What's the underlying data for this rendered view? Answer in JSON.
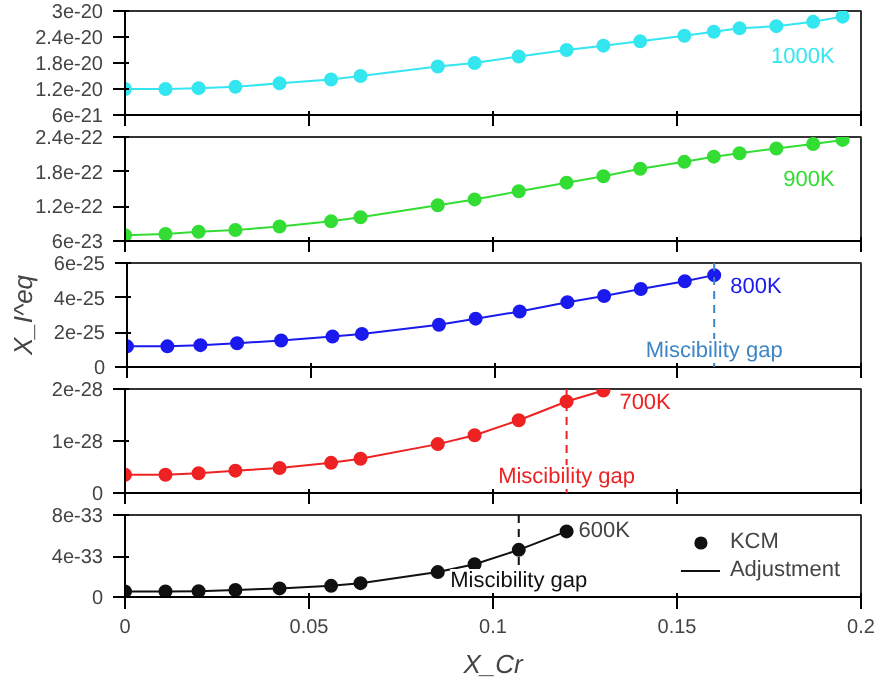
{
  "chart_data": [
    {
      "type": "line",
      "ylim": [
        6e-21,
        3e-20
      ],
      "yticks": [
        {
          "value": 6e-21,
          "label": "6e-21"
        },
        {
          "value": 1.2e-20,
          "label": "1.2e-20"
        },
        {
          "value": 1.8e-20,
          "label": "1.8e-20"
        },
        {
          "value": 2.4e-20,
          "label": "2.4e-20"
        },
        {
          "value": 3e-20,
          "label": "3e-20"
        }
      ],
      "xlim": [
        0,
        0.2
      ],
      "xticks": [
        0,
        0.05,
        0.1,
        0.15,
        0.2
      ],
      "tick_labels": "y",
      "marker": "circle",
      "grid": false,
      "x": [
        0,
        0.011,
        0.02,
        0.03,
        0.042,
        0.056,
        0.064,
        0.085,
        0.095,
        0.107,
        0.12,
        0.13,
        0.14,
        0.152,
        0.16,
        0.167,
        0.177,
        0.187,
        0.195
      ],
      "series": [
        {
          "name": "1000K",
          "color": "#33e6f0",
          "values": [
            1.2e-20,
            1.2e-20,
            1.22e-20,
            1.25e-20,
            1.33e-20,
            1.42e-20,
            1.5e-20,
            1.72e-20,
            1.8e-20,
            1.95e-20,
            2.1e-20,
            2.2e-20,
            2.3e-20,
            2.43e-20,
            2.52e-20,
            2.6e-20,
            2.65e-20,
            2.75e-20,
            2.87e-20
          ]
        }
      ]
    },
    {
      "type": "line",
      "ylim": [
        6e-23,
        2.4e-22
      ],
      "yticks": [
        {
          "value": 6e-23,
          "label": "6e-23"
        },
        {
          "value": 1.2e-22,
          "label": "1.2e-22"
        },
        {
          "value": 1.8e-22,
          "label": "1.8e-22"
        },
        {
          "value": 2.4e-22,
          "label": "2.4e-22"
        }
      ],
      "xlim": [
        0,
        0.2
      ],
      "xticks": [
        0,
        0.05,
        0.1,
        0.15,
        0.2
      ],
      "tick_labels": "y",
      "marker": "circle",
      "grid": false,
      "x": [
        0,
        0.011,
        0.02,
        0.03,
        0.042,
        0.056,
        0.064,
        0.085,
        0.095,
        0.107,
        0.12,
        0.13,
        0.14,
        0.152,
        0.16,
        0.167,
        0.177,
        0.187,
        0.195
      ],
      "series": [
        {
          "name": "900K",
          "color": "#33dd33",
          "values": [
            7e-23,
            7.2e-23,
            7.6e-23,
            7.9e-23,
            8.5e-23,
            9.4e-23,
            1.01e-22,
            1.22e-22,
            1.32e-22,
            1.46e-22,
            1.61e-22,
            1.72e-22,
            1.85e-22,
            1.97e-22,
            2.06e-22,
            2.12e-22,
            2.2e-22,
            2.28e-22,
            2.35e-22
          ]
        }
      ]
    },
    {
      "type": "line",
      "ylabel": "X_I^eq",
      "ylim": [
        0,
        6e-25
      ],
      "yticks": [
        0,
        2e-25,
        4e-25,
        6e-25
      ],
      "xlim": [
        0,
        0.2
      ],
      "xticks": [
        0,
        0.05,
        0.1,
        0.15,
        0.2
      ],
      "tick_labels": "y",
      "marker": "circle",
      "grid": false,
      "x": [
        0,
        0.011,
        0.02,
        0.03,
        0.042,
        0.056,
        0.064,
        0.085,
        0.095,
        0.107,
        0.12,
        0.13,
        0.14,
        0.152,
        0.16
      ],
      "series": [
        {
          "name": "800K",
          "color": "#1a1aee",
          "values": [
            1.19e-25,
            1.19e-25,
            1.26e-25,
            1.37e-25,
            1.53e-25,
            1.76e-25,
            1.91e-25,
            2.44e-25,
            2.79e-25,
            3.2e-25,
            3.74e-25,
            4.1e-25,
            4.5e-25,
            4.95e-25,
            5.3e-25
          ]
        }
      ],
      "ref_lines": [
        {
          "axis": "x",
          "value": 0.16,
          "label": "Miscibility gap",
          "color": "#3d85c6",
          "line_style": "dashed"
        }
      ]
    },
    {
      "type": "line",
      "ylim": [
        0,
        2e-28
      ],
      "yticks": [
        0,
        1e-28,
        2e-28
      ],
      "xlim": [
        0,
        0.2
      ],
      "xticks": [
        0,
        0.05,
        0.1,
        0.15,
        0.2
      ],
      "tick_labels": "y",
      "marker": "circle",
      "grid": false,
      "x": [
        0,
        0.011,
        0.02,
        0.03,
        0.042,
        0.056,
        0.064,
        0.085,
        0.095,
        0.107,
        0.12,
        0.13
      ],
      "series": [
        {
          "name": "700K",
          "color": "#ee2222",
          "values": [
            3.5e-29,
            3.5e-29,
            3.8e-29,
            4.3e-29,
            4.8e-29,
            5.8e-29,
            6.6e-29,
            9.4e-29,
            1.11e-28,
            1.4e-28,
            1.76e-28,
            1.97e-28
          ]
        }
      ],
      "ref_lines": [
        {
          "axis": "x",
          "value": 0.12,
          "label": "Miscibility gap",
          "color": "#ee2222",
          "line_style": "dashed"
        }
      ]
    },
    {
      "type": "line",
      "xlabel": "X_Cr",
      "ylim": [
        0,
        8e-33
      ],
      "yticks": [
        0,
        4e-33,
        8e-33
      ],
      "xlim": [
        0,
        0.2
      ],
      "xticks": [
        0,
        0.05,
        0.1,
        0.15,
        0.2
      ],
      "grid": false,
      "legend": "right",
      "x": [
        0,
        0.011,
        0.02,
        0.03,
        0.042,
        0.056,
        0.064,
        0.085,
        0.095,
        0.107,
        0.12
      ],
      "series": [
        {
          "name": "KCM",
          "type": "scatter",
          "marker": "circle",
          "color": "#111111",
          "values": [
            5.3e-34,
            5.3e-34,
            5.7e-34,
            6.8e-34,
            8.4e-34,
            1.09e-33,
            1.35e-33,
            2.43e-33,
            3.2e-33,
            4.6e-33,
            6.4e-33
          ]
        },
        {
          "name": "Adjustment",
          "type": "line",
          "color": "#111111",
          "values": [
            5.3e-34,
            5.3e-34,
            5.7e-34,
            6.8e-34,
            8.4e-34,
            1.09e-33,
            1.35e-33,
            2.43e-33,
            3.2e-33,
            4.6e-33,
            6.4e-33
          ]
        }
      ],
      "annotations": [
        "600K"
      ],
      "ref_lines": [
        {
          "axis": "x",
          "value": 0.107,
          "label": "Miscibility gap",
          "color": "#111111",
          "line_style": "dashed"
        }
      ]
    }
  ]
}
